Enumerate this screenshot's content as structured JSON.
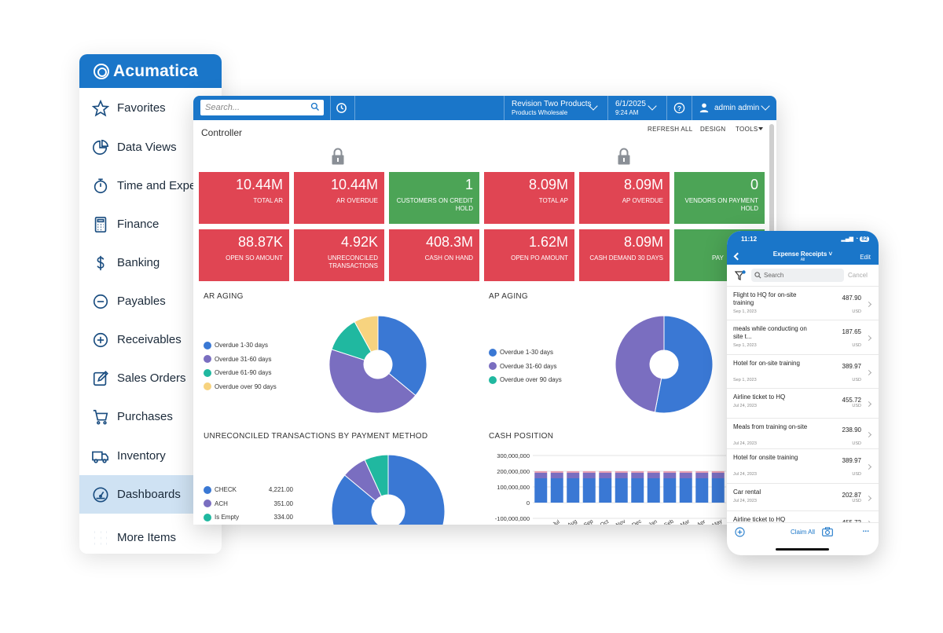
{
  "nav": {
    "brand": "Acumatica",
    "items": [
      {
        "label": "Favorites",
        "icon": "star-icon"
      },
      {
        "label": "Data Views",
        "icon": "pie-chart-icon"
      },
      {
        "label": "Time and Expen",
        "icon": "stopwatch-icon"
      },
      {
        "label": "Finance",
        "icon": "calculator-icon"
      },
      {
        "label": "Banking",
        "icon": "dollar-icon"
      },
      {
        "label": "Payables",
        "icon": "minus-circle-icon"
      },
      {
        "label": "Receivables",
        "icon": "plus-circle-icon"
      },
      {
        "label": "Sales Orders",
        "icon": "edit-icon"
      },
      {
        "label": "Purchases",
        "icon": "cart-icon"
      },
      {
        "label": "Inventory",
        "icon": "truck-icon"
      },
      {
        "label": "Dashboards",
        "icon": "gauge-icon",
        "active": true
      },
      {
        "label": "More Items",
        "icon": "grid-icon"
      }
    ]
  },
  "topbar": {
    "search_placeholder": "Search...",
    "company": "Revision Two Products",
    "branch": "Products Wholesale",
    "date": "6/1/2025",
    "time": "9:24 AM",
    "user": "admin admin"
  },
  "dashboard": {
    "title": "Controller",
    "toolbar": {
      "refresh": "REFRESH ALL",
      "design": "DESIGN",
      "tools": "TOOLS"
    },
    "tiles_row1": [
      {
        "value": "10.44M",
        "label": "TOTAL AR",
        "color": "red"
      },
      {
        "value": "10.44M",
        "label": "AR OVERDUE",
        "color": "red"
      },
      {
        "value": "1",
        "label": "CUSTOMERS ON CREDIT HOLD",
        "color": "green"
      },
      {
        "value": "8.09M",
        "label": "TOTAL AP",
        "color": "red"
      },
      {
        "value": "8.09M",
        "label": "AP OVERDUE",
        "color": "red"
      },
      {
        "value": "0",
        "label": "VENDORS ON PAYMENT HOLD",
        "color": "green"
      }
    ],
    "tiles_row2": [
      {
        "value": "88.87K",
        "label": "OPEN SO AMOUNT",
        "color": "red"
      },
      {
        "value": "4.92K",
        "label": "UNRECONCILED TRANSACTIONS",
        "color": "red"
      },
      {
        "value": "408.3M",
        "label": "CASH ON HAND",
        "color": "red"
      },
      {
        "value": "1.62M",
        "label": "OPEN PO AMOUNT",
        "color": "red"
      },
      {
        "value": "8.09M",
        "label": "CASH DEMAND 30 DAYS",
        "color": "red"
      },
      {
        "value": "",
        "label": "PAY",
        "color": "green"
      }
    ],
    "ar_aging": {
      "title": "AR AGING",
      "legend": [
        "Overdue 1-30 days",
        "Overdue 31-60 days",
        "Overdue 61-90 days",
        "Overdue over 90 days"
      ]
    },
    "ap_aging": {
      "title": "AP AGING",
      "legend": [
        "Overdue 1-30 days",
        "Overdue 31-60 days",
        "Overdue over 90 days"
      ]
    },
    "unreconciled": {
      "title": "UNRECONCILED TRANSACTIONS BY PAYMENT METHOD",
      "legend": [
        {
          "label": "CHECK",
          "amount": "4,221.00"
        },
        {
          "label": "ACH",
          "amount": "351.00"
        },
        {
          "label": "Is Empty",
          "amount": "334.00"
        }
      ]
    },
    "cash_position": {
      "title": "CASH POSITION",
      "yticks": [
        "300,000,000",
        "200,000,000",
        "100,000,000",
        "0",
        "-100,000,000"
      ],
      "xticks": [
        "Jul",
        "Aug",
        "Sep",
        "Oct",
        "Nov",
        "Dec",
        "Jan",
        "Feb",
        "Mar",
        "Apr",
        "May"
      ]
    }
  },
  "chart_data": [
    {
      "type": "pie",
      "title": "AR AGING",
      "categories": [
        "Overdue 1-30 days",
        "Overdue 31-60 days",
        "Overdue 61-90 days",
        "Overdue over 90 days"
      ],
      "values": [
        36,
        44,
        12,
        8
      ],
      "colors": [
        "#3a78d4",
        "#7a6ec0",
        "#20b8a0",
        "#f7d37f"
      ]
    },
    {
      "type": "pie",
      "title": "AP AGING",
      "categories": [
        "Overdue 1-30 days",
        "Overdue 31-60 days",
        "Overdue over 90 days"
      ],
      "values": [
        53,
        47,
        0
      ],
      "colors": [
        "#3a78d4",
        "#7a6ec0",
        "#20b8a0"
      ]
    },
    {
      "type": "pie",
      "title": "UNRECONCILED TRANSACTIONS BY PAYMENT METHOD",
      "categories": [
        "CHECK",
        "ACH",
        "Is Empty"
      ],
      "values": [
        4221,
        351,
        334
      ],
      "colors": [
        "#3a78d4",
        "#7a6ec0",
        "#20b8a0"
      ]
    },
    {
      "type": "bar",
      "title": "CASH POSITION",
      "ylim": [
        -100000000,
        300000000
      ],
      "categories": [
        "",
        "Jul",
        "Aug",
        "Sep",
        "Oct",
        "Nov",
        "Dec",
        "Jan",
        "Feb",
        "Mar",
        "Apr",
        "May"
      ],
      "series": [
        {
          "values": [
            155000000,
            155000000,
            155000000,
            155000000,
            155000000,
            155000000,
            155000000,
            155000000,
            155000000,
            155000000,
            155000000,
            155000000
          ],
          "color": "#3a78d4"
        },
        {
          "values": [
            35000000,
            35000000,
            35000000,
            35000000,
            35000000,
            35000000,
            35000000,
            35000000,
            35000000,
            35000000,
            35000000,
            35000000
          ],
          "color": "#7a6ec0"
        },
        {
          "values": [
            10000000,
            10000000,
            10000000,
            10000000,
            10000000,
            10000000,
            10000000,
            10000000,
            10000000,
            10000000,
            10000000,
            10000000
          ],
          "color": "#e8a0b4"
        }
      ]
    }
  ],
  "phone": {
    "time": "11:12",
    "battery": "82",
    "title": "Expense Receipts",
    "subtitle": "All",
    "edit": "Edit",
    "search_placeholder": "Search",
    "cancel": "Cancel",
    "receipts": [
      {
        "name": "Flight to HQ for on-site training",
        "date": "Sep 1, 2023",
        "amount": "487.90",
        "currency": "USD"
      },
      {
        "name": "meals while conducting on site t...",
        "date": "Sep 1, 2023",
        "amount": "187.65",
        "currency": "USD"
      },
      {
        "name": "Hotel for on-site training",
        "date": "Sep 1, 2023",
        "amount": "389.97",
        "currency": "USD"
      },
      {
        "name": "Airline ticket to HQ",
        "date": "Jul 24, 2023",
        "amount": "455.72",
        "currency": "USD"
      },
      {
        "name": "Meals from training on-site",
        "date": "Jul 24, 2023",
        "amount": "238.90",
        "currency": "USD"
      },
      {
        "name": "Hotel for onsite training",
        "date": "Jul 24, 2023",
        "amount": "389.97",
        "currency": "USD"
      },
      {
        "name": "Car rental",
        "date": "Jul 24, 2023",
        "amount": "202.87",
        "currency": "USD"
      },
      {
        "name": "Airline ticket to HQ",
        "date": "",
        "amount": "455.72",
        "currency": ""
      }
    ],
    "footer": {
      "claim": "Claim All",
      "more": "..."
    }
  }
}
